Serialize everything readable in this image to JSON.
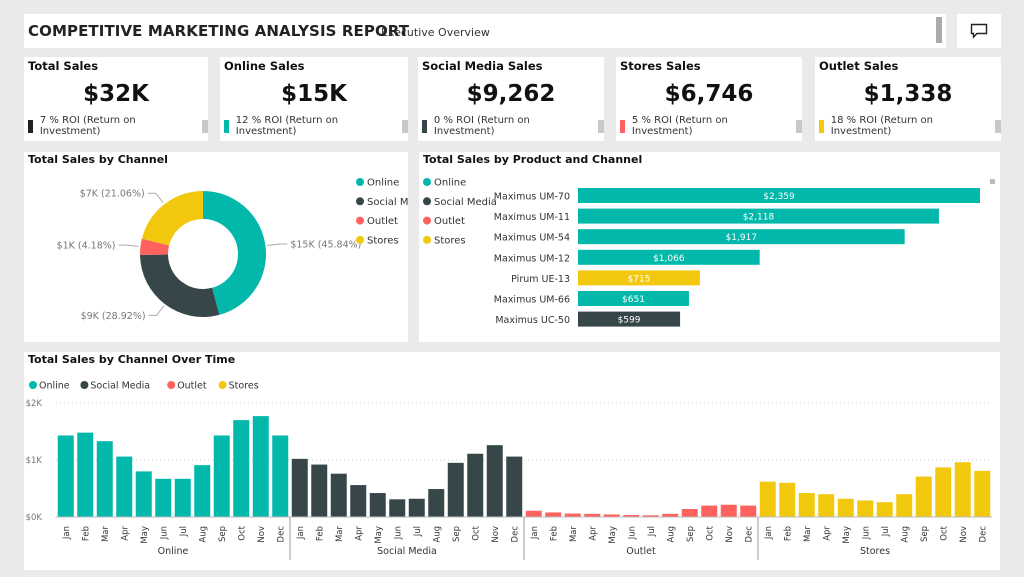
{
  "header": {
    "title": "COMPETITIVE MARKETING ANALYSIS REPORT",
    "subtitle": "Executive Overview"
  },
  "colors": {
    "online": "#01b8aa",
    "social": "#374649",
    "outlet": "#fd625e",
    "stores": "#f2c80f"
  },
  "kpis": [
    {
      "label": "Total Sales",
      "value": "$32K",
      "roi": "7 % ROI (Return on Investment)",
      "color": "#222222"
    },
    {
      "label": "Online Sales",
      "value": "$15K",
      "roi": "12 % ROI (Return on Investment)",
      "color": "#01b8aa"
    },
    {
      "label": "Social Media Sales",
      "value": "$9,262",
      "roi": "0 % ROI (Return on Investment)",
      "color": "#374649"
    },
    {
      "label": "Stores Sales",
      "value": "$6,746",
      "roi": "5 % ROI (Return on Investment)",
      "color": "#fd625e"
    },
    {
      "label": "Outlet Sales",
      "value": "$1,338",
      "roi": "18 % ROI (Return on Investment)",
      "color": "#f2c80f"
    }
  ],
  "panels": {
    "channel_title": "Total Sales by Channel",
    "product_title": "Total Sales by Product and Channel",
    "time_title": "Total Sales by Channel Over Time"
  },
  "chart_data": [
    {
      "type": "pie",
      "variant": "donut",
      "categories": [
        "Online",
        "Social Media",
        "Outlet",
        "Stores"
      ],
      "values": [
        45.84,
        28.92,
        4.18,
        21.06
      ],
      "labels": [
        "$15K (45.84%)",
        "$9K (28.92%)",
        "$1K (4.18%)",
        "$7K (21.06%)"
      ],
      "colors": [
        "#01b8aa",
        "#374649",
        "#fd625e",
        "#f2c80f"
      ],
      "legend": "right",
      "legend_entries": [
        "Online",
        "Social Media",
        "Outlet",
        "Stores"
      ]
    },
    {
      "type": "bar",
      "orientation": "horizontal",
      "categories": [
        "Maximus UM-70",
        "Maximus UM-11",
        "Maximus UM-54",
        "Maximus UM-12",
        "Pirum UE-13",
        "Maximus UM-66",
        "Maximus UC-50"
      ],
      "values": [
        2359,
        2118,
        1917,
        1066,
        715,
        651,
        599
      ],
      "labels": [
        "$2,359",
        "$2,118",
        "$1,917",
        "$1,066",
        "$715",
        "$651",
        "$599"
      ],
      "bar_colors": [
        "#01b8aa",
        "#01b8aa",
        "#01b8aa",
        "#01b8aa",
        "#f2c80f",
        "#01b8aa",
        "#374649"
      ],
      "legend": "left",
      "legend_entries": [
        "Online",
        "Social Media",
        "Outlet",
        "Stores"
      ]
    },
    {
      "type": "bar",
      "legend": "top-left",
      "legend_entries": [
        "Online",
        "Social Media",
        "Outlet",
        "Stores"
      ],
      "months": [
        "Jan",
        "Feb",
        "Mar",
        "Apr",
        "May",
        "Jun",
        "Jul",
        "Aug",
        "Sep",
        "Oct",
        "Nov",
        "Dec"
      ],
      "ylim": [
        0,
        2000
      ],
      "yticks": [
        {
          "v": 0,
          "l": "$0K"
        },
        {
          "v": 1000,
          "l": "$1K"
        },
        {
          "v": 2000,
          "l": "$2K"
        }
      ],
      "grid": true,
      "series": [
        {
          "name": "Online",
          "values": [
            1430,
            1480,
            1330,
            1060,
            800,
            670,
            670,
            910,
            1430,
            1700,
            1770,
            1430
          ]
        },
        {
          "name": "Social Media",
          "values": [
            1020,
            920,
            760,
            560,
            420,
            310,
            320,
            490,
            950,
            1110,
            1260,
            1060
          ]
        },
        {
          "name": "Outlet",
          "values": [
            110,
            80,
            60,
            55,
            45,
            35,
            30,
            55,
            140,
            200,
            215,
            200
          ]
        },
        {
          "name": "Stores",
          "values": [
            620,
            600,
            420,
            400,
            320,
            290,
            260,
            400,
            710,
            870,
            960,
            810
          ]
        }
      ]
    }
  ]
}
